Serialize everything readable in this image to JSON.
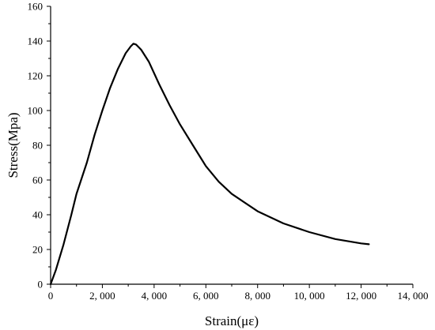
{
  "chart_data": {
    "type": "line",
    "title": "",
    "xlabel": "Strain(με)",
    "ylabel": "Stress(Mpa)",
    "xlim": [
      0,
      14000
    ],
    "ylim": [
      0,
      160
    ],
    "x_ticks": [
      0,
      2000,
      4000,
      6000,
      8000,
      10000,
      12000,
      14000
    ],
    "x_tick_labels": [
      "0",
      "2, 000",
      "4, 000",
      "6, 000",
      "8, 000",
      "10, 000",
      "12, 000",
      "14, 000"
    ],
    "y_ticks": [
      0,
      20,
      40,
      60,
      80,
      100,
      120,
      140,
      160
    ],
    "y_tick_labels": [
      "0",
      "20",
      "40",
      "60",
      "80",
      "100",
      "120",
      "140",
      "160"
    ],
    "grid": false,
    "legend": "none",
    "series": [
      {
        "color": "#000000",
        "x": [
          0,
          200,
          500,
          800,
          1000,
          1400,
          1700,
          2000,
          2300,
          2600,
          2900,
          3100,
          3200,
          3300,
          3500,
          3800,
          4200,
          4600,
          5000,
          5500,
          6000,
          6500,
          7000,
          8000,
          9000,
          10000,
          11000,
          12000,
          12300
        ],
        "y": [
          0,
          8,
          23,
          40,
          52,
          70,
          86,
          100,
          113,
          124,
          133,
          137,
          138.5,
          138,
          135,
          128,
          115,
          103,
          92,
          80,
          68,
          59,
          52,
          42,
          35,
          30,
          26,
          23.5,
          23
        ]
      }
    ]
  }
}
